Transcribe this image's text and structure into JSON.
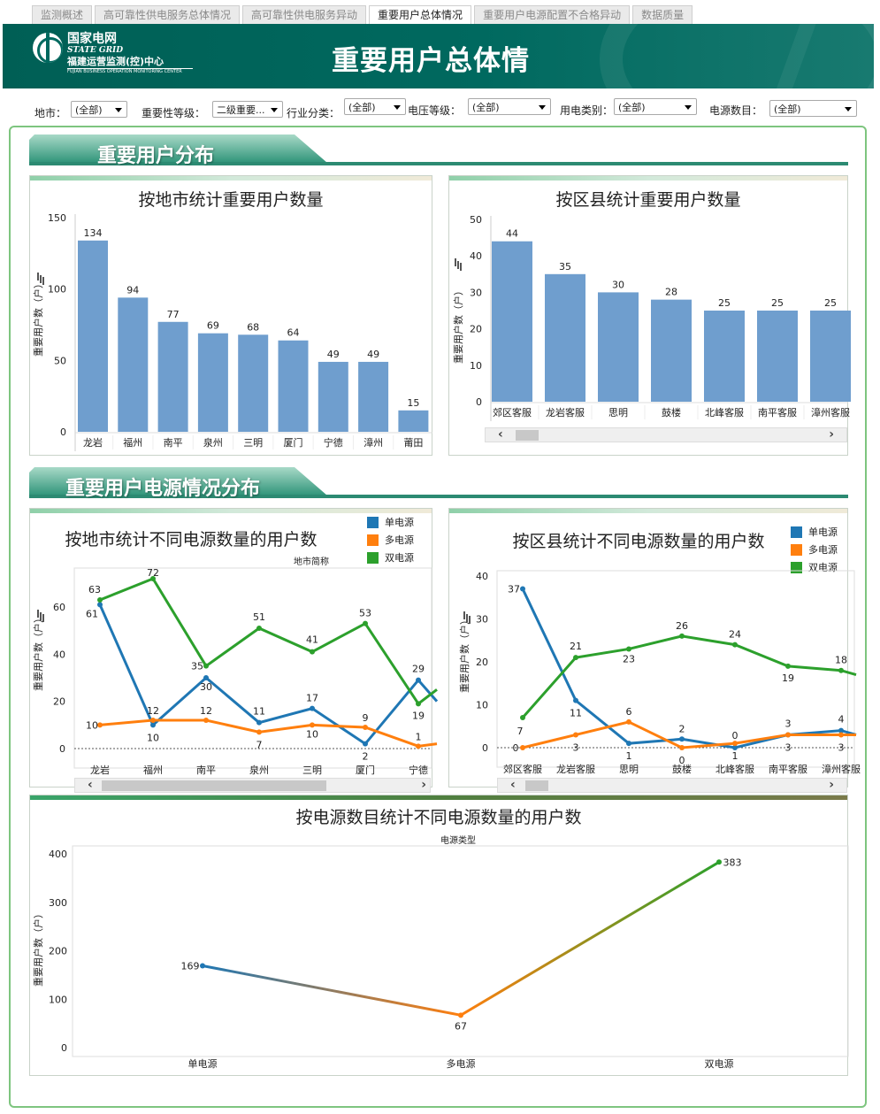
{
  "tabs": [
    {
      "label": "监测概述",
      "active": false
    },
    {
      "label": "高可靠性供电服务总体情况",
      "active": false
    },
    {
      "label": "高可靠性供电服务异动",
      "active": false
    },
    {
      "label": "重要用户总体情况",
      "active": true
    },
    {
      "label": "重要用户电源配置不合格异动",
      "active": false
    },
    {
      "label": "数据质量",
      "active": false
    }
  ],
  "banner": {
    "logo_cn": "国家电网",
    "logo_en": "STATE GRID",
    "logo_sub": "福建运营监测(控)中心",
    "logo_sub_en": "FUJIAN BUSINESS OPERATION MONITORING CENTER",
    "title": "重要用户总体情"
  },
  "filters": [
    {
      "label": "地市：",
      "value": "(全部)"
    },
    {
      "label": "重要性等级：",
      "value": "二级重要..."
    },
    {
      "label": "行业分类：",
      "value": "(全部)"
    },
    {
      "label": "电压等级：",
      "value": "(全部)"
    },
    {
      "label": "用电类别：",
      "value": "(全部)"
    },
    {
      "label": "电源数目：",
      "value": "(全部)"
    }
  ],
  "sections": {
    "dist": "重要用户分布",
    "power": "重要用户电源情况分布"
  },
  "chart_data": [
    {
      "id": "city_count",
      "type": "bar",
      "title": "按地市统计重要用户数量",
      "ylabel": "重要用户数（户）",
      "ylim": [
        0,
        150
      ],
      "yticks": [
        0,
        50,
        100,
        150
      ],
      "categories": [
        "龙岩",
        "福州",
        "南平",
        "泉州",
        "三明",
        "厦门",
        "宁德",
        "漳州",
        "莆田"
      ],
      "values": [
        134,
        94,
        77,
        69,
        68,
        64,
        49,
        49,
        15
      ],
      "color": "#6f9ece"
    },
    {
      "id": "county_count",
      "type": "bar",
      "title": "按区县统计重要用户数量",
      "ylabel": "重要用户数（户）",
      "ylim": [
        0,
        50
      ],
      "yticks": [
        0,
        10,
        20,
        30,
        40,
        50
      ],
      "categories": [
        "郊区客服",
        "龙岩客服",
        "思明",
        "鼓楼",
        "北峰客服",
        "南平客服",
        "漳州客服"
      ],
      "values": [
        44,
        35,
        30,
        28,
        25,
        25,
        25
      ],
      "color": "#6f9ece"
    },
    {
      "id": "city_power",
      "type": "line",
      "title": "按地市统计不同电源数量的用户数",
      "legend_title": "地市简称",
      "ylabel": "重要用户数（户）",
      "ylim": [
        0,
        72
      ],
      "yticks": [
        0,
        20,
        40,
        60
      ],
      "categories": [
        "龙岩",
        "福州",
        "南平",
        "泉州",
        "三明",
        "厦门",
        "宁德"
      ],
      "series": [
        {
          "name": "单电源",
          "color": "#1f77b4",
          "values": [
            61,
            10,
            30,
            11,
            17,
            2,
            29
          ]
        },
        {
          "name": "多电源",
          "color": "#ff7f0e",
          "values": [
            10,
            12,
            12,
            7,
            10,
            9,
            1
          ]
        },
        {
          "name": "双电源",
          "color": "#2ca02c",
          "values": [
            63,
            72,
            35,
            51,
            41,
            53,
            19
          ]
        }
      ]
    },
    {
      "id": "county_power",
      "type": "line",
      "title": "按区县统计不同电源数量的用户数",
      "ylabel": "重要用户数（户）",
      "ylim": [
        0,
        40
      ],
      "yticks": [
        0,
        10,
        20,
        30,
        40
      ],
      "categories": [
        "郊区客服",
        "龙岩客服",
        "思明",
        "鼓楼",
        "北峰客服",
        "南平客服",
        "漳州客服"
      ],
      "series": [
        {
          "name": "单电源",
          "color": "#1f77b4",
          "values": [
            37,
            11,
            1,
            2,
            0,
            3,
            4
          ]
        },
        {
          "name": "多电源",
          "color": "#ff7f0e",
          "values": [
            0,
            3,
            6,
            0,
            1,
            3,
            3
          ]
        },
        {
          "name": "双电源",
          "color": "#2ca02c",
          "values": [
            7,
            21,
            23,
            26,
            24,
            19,
            18
          ]
        }
      ]
    },
    {
      "id": "source_count",
      "type": "line",
      "title": "按电源数目统计不同电源数量的用户数",
      "legend_title": "电源类型",
      "ylabel": "重要用户数（户）",
      "ylim": [
        0,
        400
      ],
      "yticks": [
        0,
        100,
        200,
        300,
        400
      ],
      "categories": [
        "单电源",
        "多电源",
        "双电源"
      ],
      "values": [
        169,
        67,
        383
      ]
    }
  ]
}
